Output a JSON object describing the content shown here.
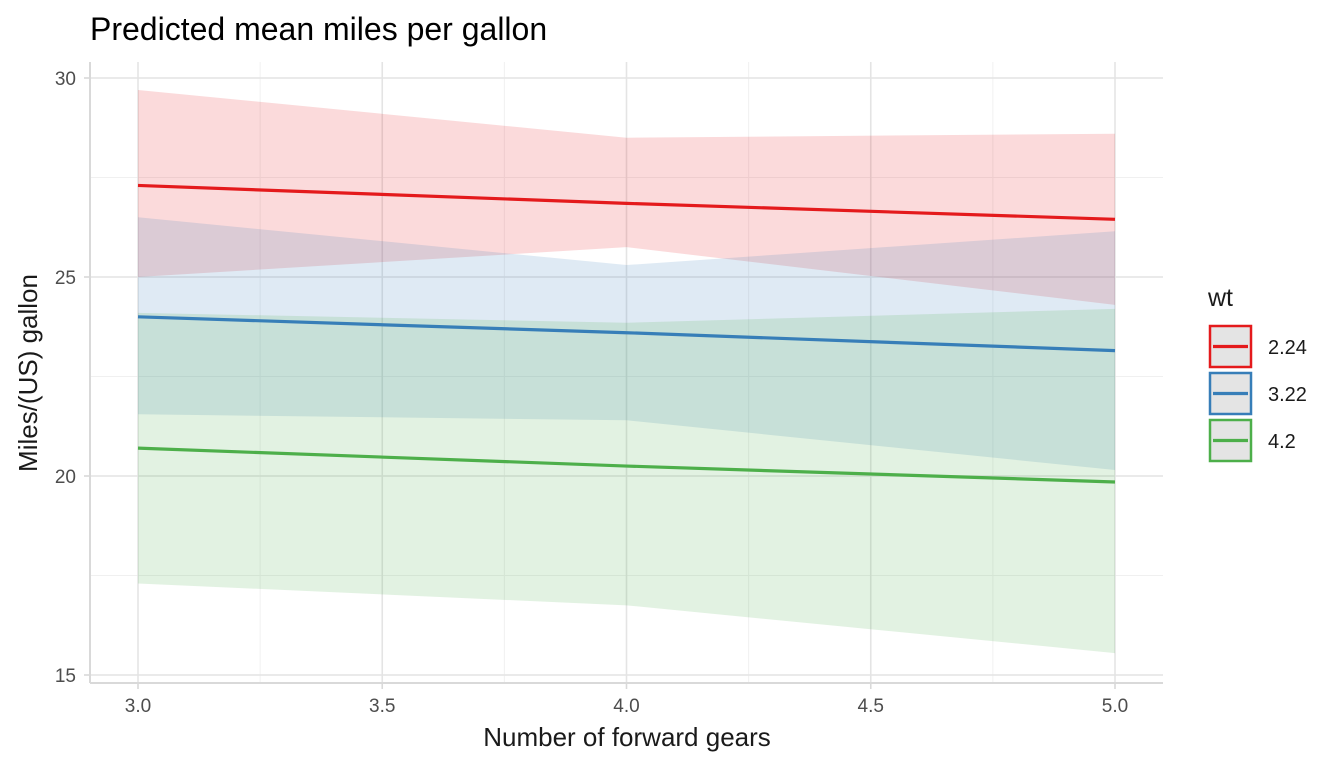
{
  "chart_data": {
    "type": "line",
    "title": "Predicted mean miles per gallon",
    "xlabel": "Number of forward gears",
    "ylabel": "Miles/(US) gallon",
    "xlim": [
      3.0,
      5.0
    ],
    "ylim": [
      15,
      30
    ],
    "x_ticks": [
      3.0,
      3.5,
      4.0,
      4.5,
      5.0
    ],
    "x_tick_labels": [
      "3.0",
      "3.5",
      "4.0",
      "4.5",
      "5.0"
    ],
    "y_ticks": [
      15,
      20,
      25,
      30
    ],
    "y_tick_labels": [
      "15",
      "20",
      "25",
      "30"
    ],
    "grid": true,
    "legend": {
      "title": "wt",
      "placement": "right"
    },
    "x": [
      3,
      4,
      5
    ],
    "series": [
      {
        "name": "2.24",
        "color": "#e41a1c",
        "values": [
          27.3,
          26.85,
          26.45
        ],
        "lower": [
          25.0,
          25.75,
          24.3
        ],
        "upper": [
          29.7,
          28.5,
          28.6
        ]
      },
      {
        "name": "3.22",
        "color": "#377eb8",
        "values": [
          24.0,
          23.6,
          23.15
        ],
        "lower": [
          21.55,
          21.4,
          20.15
        ],
        "upper": [
          26.5,
          25.3,
          26.15
        ]
      },
      {
        "name": "4.2",
        "color": "#4daf4a",
        "values": [
          20.7,
          20.25,
          19.85
        ],
        "lower": [
          17.3,
          16.75,
          15.55
        ],
        "upper": [
          24.1,
          23.85,
          24.2
        ]
      }
    ]
  }
}
